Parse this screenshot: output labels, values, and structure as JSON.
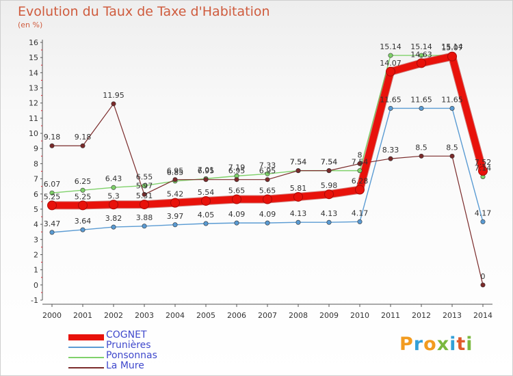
{
  "title": "Evolution du Taux de Taxe d'Habitation",
  "subtitle": "(en %)",
  "logo": {
    "text": "Proxiti",
    "colors": [
      "#f29b1f",
      "#33a0d8",
      "#f29b1f",
      "#7ab83f",
      "#33a0d8",
      "#e05a2a",
      "#7ab83f"
    ]
  },
  "chart_data": {
    "type": "line",
    "title": "Evolution du Taux de Taxe d'Habitation",
    "ylabel": "(en %)",
    "xlabel": "",
    "x": [
      "2000",
      "2001",
      "2002",
      "2003",
      "2004",
      "2005",
      "2006",
      "2007",
      "2008",
      "2009",
      "2010",
      "2011",
      "2012",
      "2013",
      "2014"
    ],
    "ylim": [
      -1,
      16
    ],
    "yticks": [
      "-1",
      "0",
      "1",
      "2",
      "3",
      "4",
      "5",
      "6",
      "7",
      "8",
      "9",
      "10",
      "11",
      "12",
      "13",
      "14",
      "15",
      "16"
    ],
    "grid": false,
    "legend_position": "bottom-left",
    "series": [
      {
        "name": "COGNET",
        "color": "#e8120b",
        "width": 10,
        "values": [
          5.25,
          5.25,
          5.3,
          5.31,
          5.42,
          5.54,
          5.65,
          5.65,
          5.81,
          5.98,
          6.28,
          14.07,
          14.63,
          15.07,
          7.52
        ],
        "labels": [
          "5.25",
          "5.25",
          "5.3",
          "5.31",
          "5.42",
          "5.54",
          "5.65",
          "5.65",
          "5.81",
          "5.98",
          "6.28",
          "14.07",
          "14.63",
          "15.07",
          "7.52"
        ]
      },
      {
        "name": "Prunières",
        "color": "#5a9bd3",
        "width": 1.4,
        "values": [
          3.47,
          3.64,
          3.82,
          3.88,
          3.97,
          4.05,
          4.09,
          4.09,
          4.13,
          4.13,
          4.17,
          11.65,
          11.65,
          11.65,
          4.17
        ],
        "labels": [
          "3.47",
          "3.64",
          "3.82",
          "3.88",
          "3.97",
          "4.05",
          "4.09",
          "4.09",
          "4.13",
          "4.13",
          "4.17",
          "11.65",
          "11.65",
          "11.65",
          "4.17"
        ]
      },
      {
        "name": "Ponsonnas",
        "color": "#7fd16a",
        "width": 1.4,
        "values": [
          6.07,
          6.25,
          6.43,
          6.55,
          6.85,
          7.01,
          7.19,
          7.33,
          7.54,
          7.54,
          7.54,
          15.14,
          15.14,
          15.14,
          7.14
        ],
        "labels": [
          "6.07",
          "6.25",
          "6.43",
          "6.55",
          "6.85",
          "7.01",
          "7.19",
          "7.33",
          "7.54",
          "7.54",
          "7.54",
          "15.14",
          "15.14",
          "15.14",
          "7.14"
        ]
      },
      {
        "name": "La Mure",
        "color": "#7a2a2a",
        "width": 1.2,
        "values": [
          9.18,
          9.18,
          11.95,
          5.97,
          6.95,
          6.95,
          6.95,
          6.95,
          7.54,
          7.54,
          8,
          8.33,
          8.5,
          8.5,
          0
        ],
        "labels": [
          "9.18",
          "9.18",
          "11.95",
          "5.97",
          "6.95",
          "6.95",
          "6.95",
          "6.95",
          "7.54",
          "7.54",
          "8",
          "8.33",
          "8.5",
          "8.5",
          "0"
        ]
      }
    ]
  }
}
